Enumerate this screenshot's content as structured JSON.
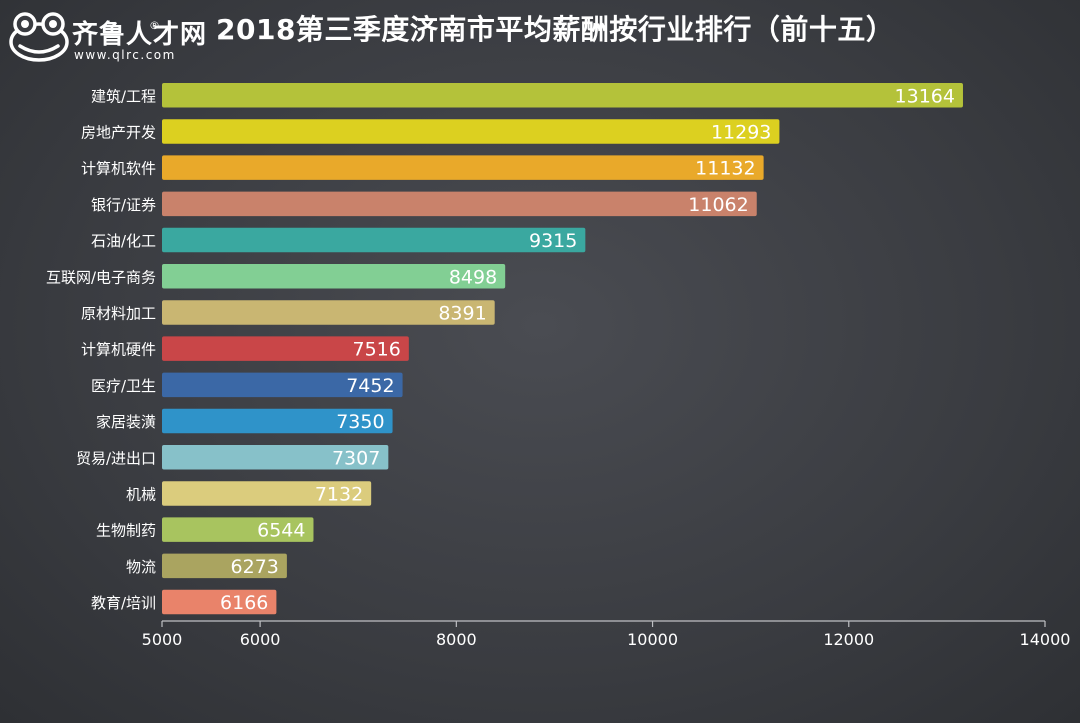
{
  "brand": {
    "name": "齐鲁人才网",
    "registered_mark": "®",
    "url": "www.qlrc.com"
  },
  "chart_data": {
    "type": "bar",
    "orientation": "horizontal",
    "title": "2018第三季度济南市平均薪酬按行业排行（前十五）",
    "xlabel": "",
    "ylabel": "",
    "xlim": [
      5000,
      14000
    ],
    "x_ticks": [
      5000,
      6000,
      8000,
      10000,
      12000,
      14000
    ],
    "grid": false,
    "legend": "none",
    "categories": [
      "建筑/工程",
      "房地产开发",
      "计算机软件",
      "银行/证券",
      "石油/化工",
      "互联网/电子商务",
      "原材料加工",
      "计算机硬件",
      "医疗/卫生",
      "家居装潢",
      "贸易/进出口",
      "机械",
      "生物制药",
      "物流",
      "教育/培训"
    ],
    "values": [
      13164,
      11293,
      11132,
      11062,
      9315,
      8498,
      8391,
      7516,
      7452,
      7350,
      7307,
      7132,
      6544,
      6273,
      6166
    ],
    "colors": [
      "#b4c23a",
      "#dcd020",
      "#e9a92a",
      "#c9826b",
      "#3aa8a0",
      "#82cf94",
      "#c9b672",
      "#c94648",
      "#3b68a6",
      "#2f93c9",
      "#87c1c9",
      "#dbcc7d",
      "#a8c45f",
      "#aaa460",
      "#e9836a"
    ]
  }
}
